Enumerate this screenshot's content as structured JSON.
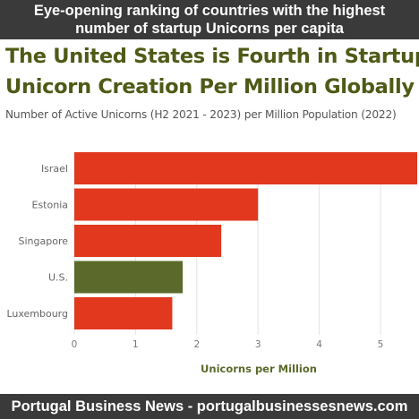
{
  "banner_top": {
    "line1": "Eye-opening ranking of countries with the highest",
    "line2": "number of startup Unicorns per capita"
  },
  "banner_bottom": "Portugal Business News - portugalbusinessesnews.com",
  "chart_data": {
    "type": "bar",
    "orientation": "horizontal",
    "title_line1": "The United States is Fourth in Startup",
    "title_line2": "Unicorn Creation Per Million Globally",
    "subtitle": "Number of Active Unicorns (H2 2021 - 2023) per Million Population (2022)",
    "xlabel": "Unicorns per Million",
    "ylabel": "",
    "categories": [
      "Israel",
      "Estonia",
      "Singapore",
      "U.S.",
      "Luxembourg"
    ],
    "values": [
      5.6,
      3.0,
      2.4,
      1.77,
      1.6
    ],
    "xlim": [
      0,
      5.6
    ],
    "xticks": [
      0,
      1,
      2,
      3,
      4,
      5
    ],
    "grid": true,
    "colors": {
      "default": "#e1381e",
      "highlight": "#5b6a2a",
      "grid": "#e3e3e3",
      "tick_text": "#777777",
      "xlabel_text": "#5b6a2a"
    },
    "highlight_category": "U.S."
  }
}
